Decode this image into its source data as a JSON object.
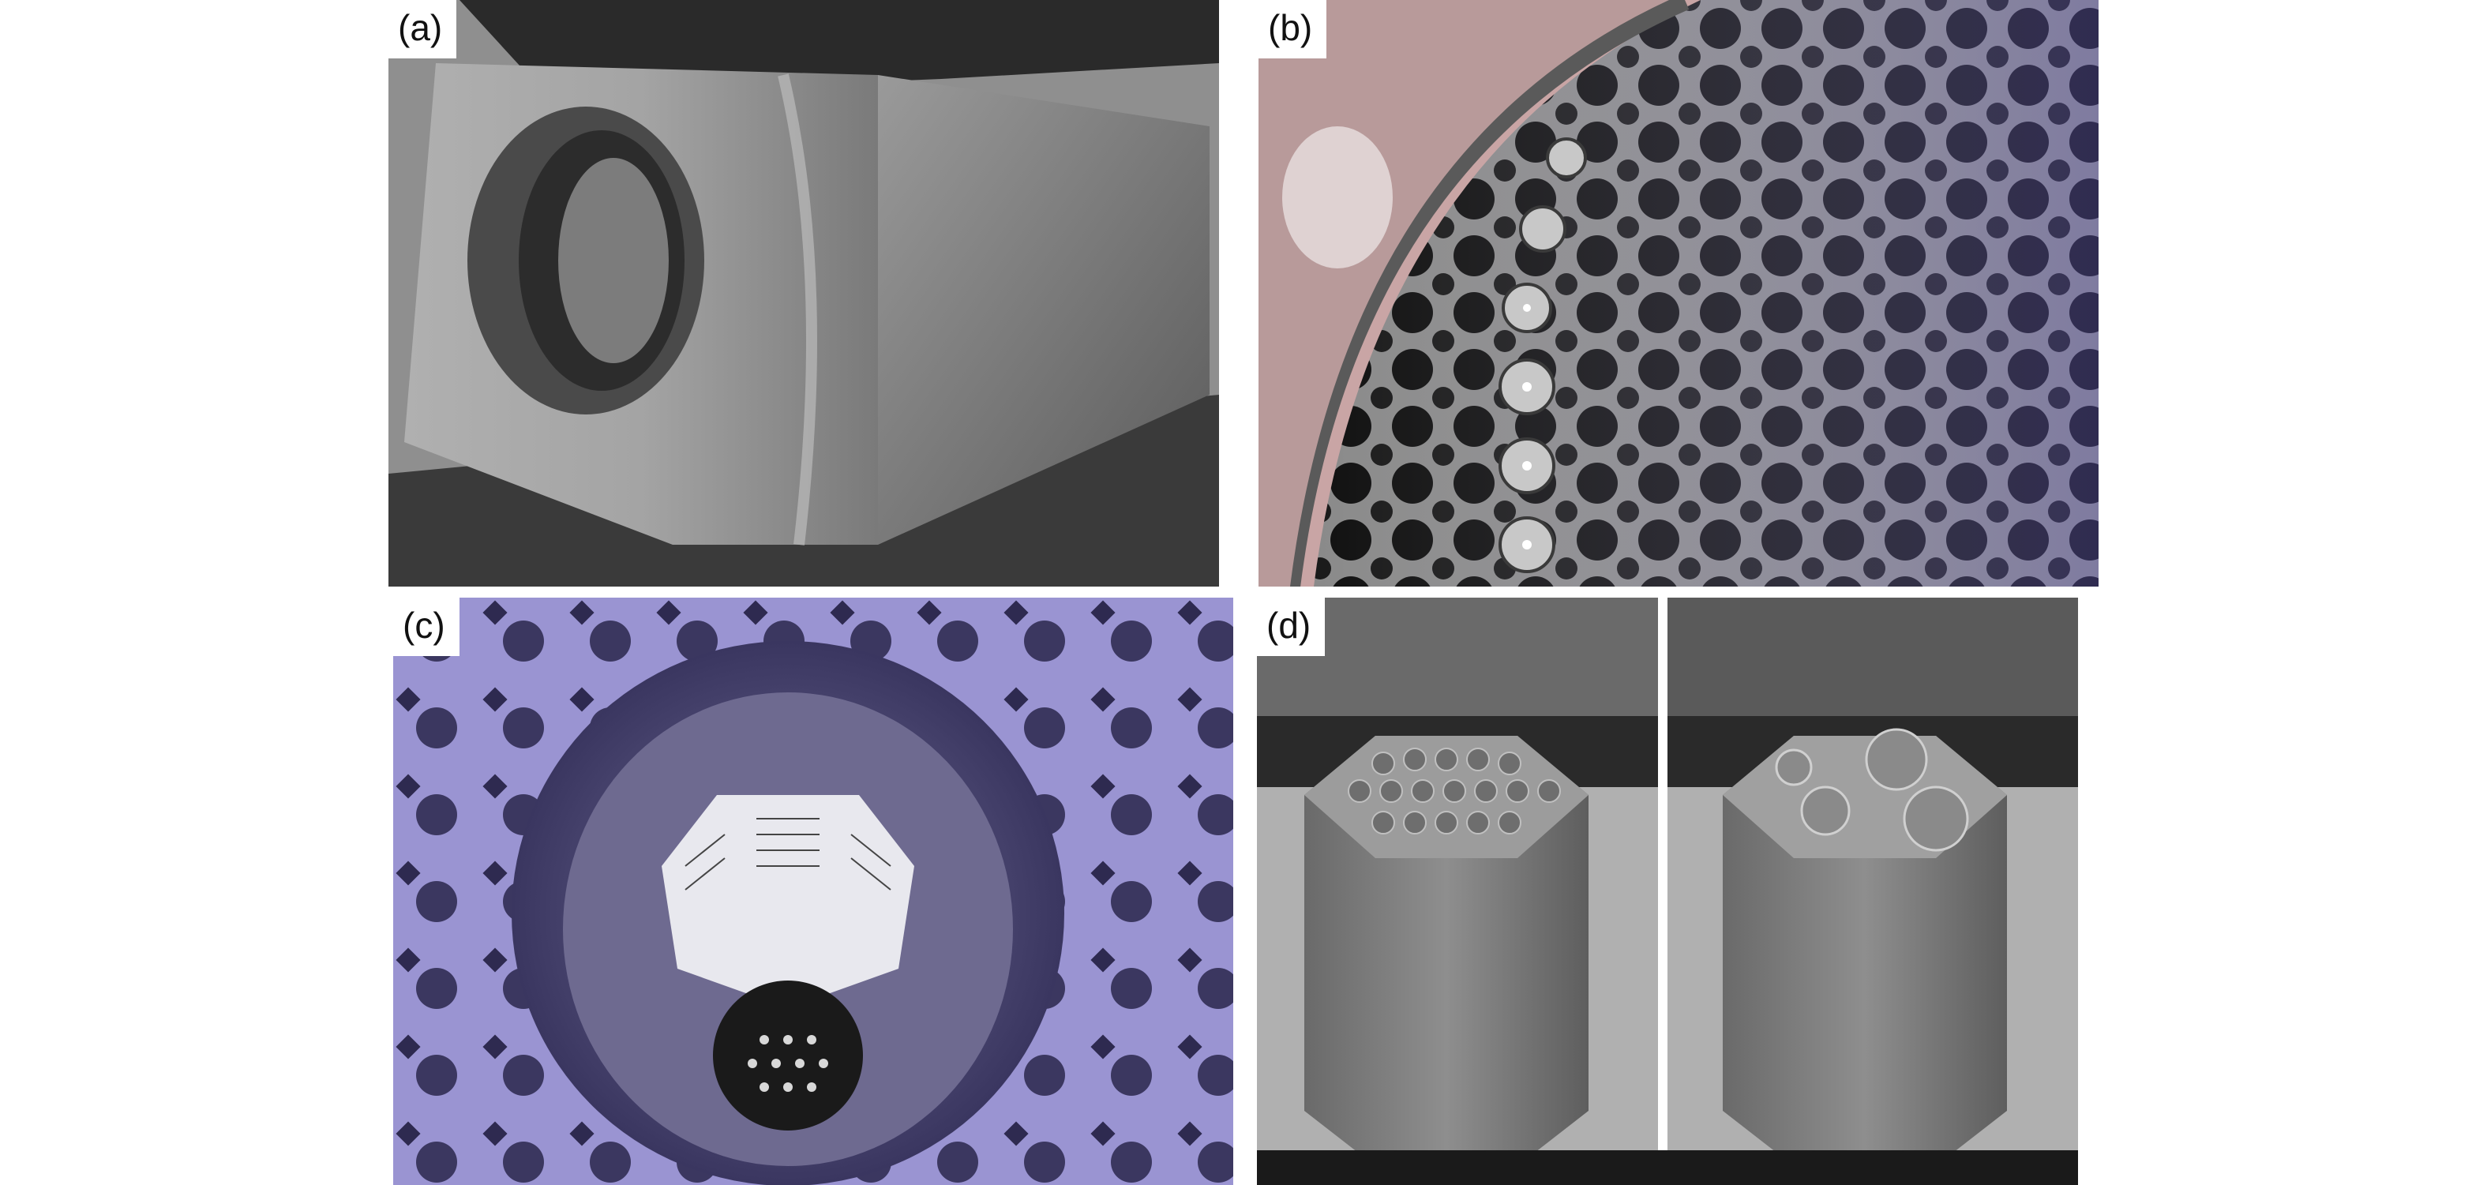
{
  "figure": {
    "panels": [
      {
        "label": "(a)",
        "subject": "graphite-block-with-round-channel"
      },
      {
        "label": "(b)",
        "subject": "reactor-core-top-grid"
      },
      {
        "label": "(c)",
        "subject": "core-cavity-with-fuel-assembly"
      },
      {
        "label": "(d)",
        "subject": "hexagonal-fuel-blocks-pair"
      }
    ]
  },
  "colors": {
    "background": "#ffffff",
    "label_bg": "#ffffff",
    "label_text": "#111111",
    "steel": "#8c8c8c",
    "dark": "#1c1c1c",
    "violet_tint": "#8c86c8"
  }
}
